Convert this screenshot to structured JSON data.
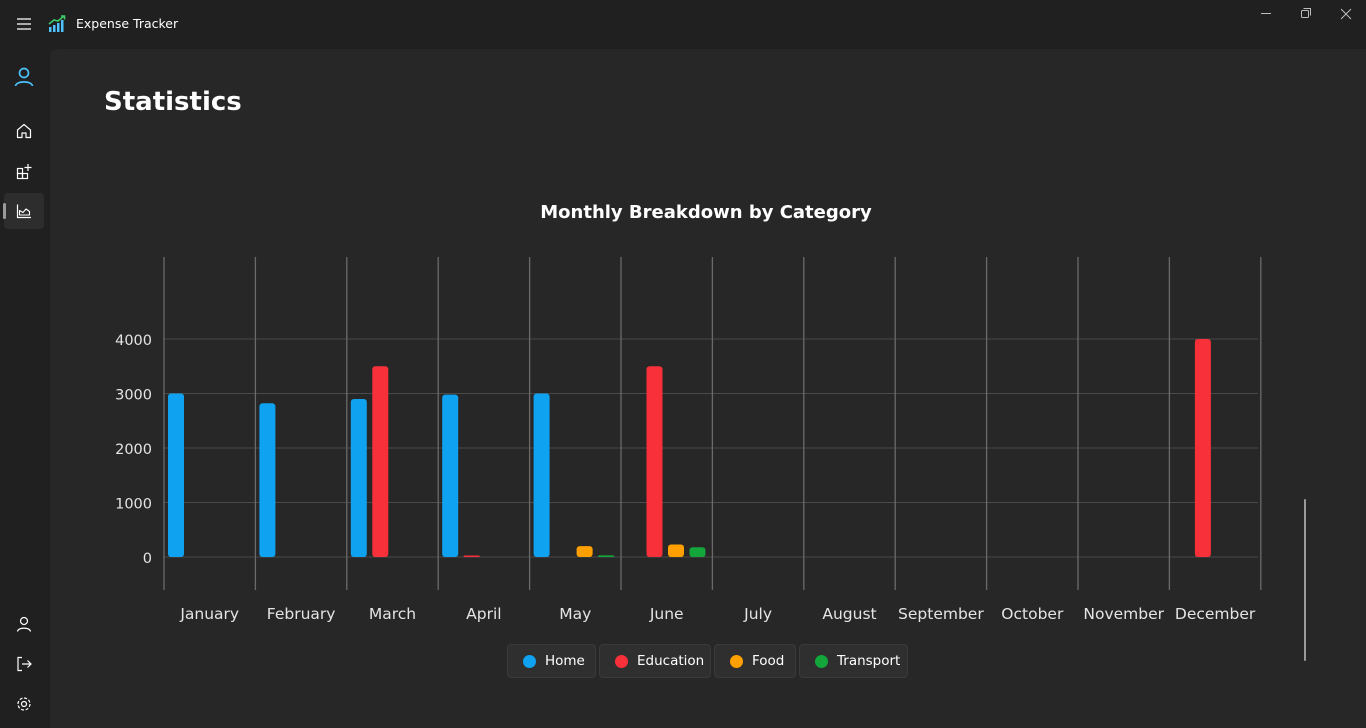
{
  "app": {
    "title": "Expense Tracker"
  },
  "page": {
    "title": "Statistics"
  },
  "nav": {
    "items": [
      {
        "icon": "person-icon",
        "name": "account"
      },
      {
        "icon": "home-icon",
        "name": "home"
      },
      {
        "icon": "apps-add-icon",
        "name": "manage"
      },
      {
        "icon": "area-chart-icon",
        "name": "statistics",
        "selected": true
      },
      {
        "icon": "person-icon",
        "name": "profile"
      },
      {
        "icon": "sign-out-icon",
        "name": "logout"
      },
      {
        "icon": "gear-icon",
        "name": "settings"
      }
    ]
  },
  "colors": {
    "accent": "#4cc2ff",
    "home": "#0ea2f0",
    "education": "#f83039",
    "food": "#ffa000",
    "transport": "#13a63b"
  },
  "chart_data": {
    "type": "bar",
    "title": "Monthly Breakdown by Category",
    "categories": [
      "January",
      "February",
      "March",
      "April",
      "May",
      "June",
      "July",
      "August",
      "September",
      "October",
      "November",
      "December"
    ],
    "yticks": [
      0,
      1000,
      2000,
      3000,
      4000
    ],
    "ylim": [
      -500,
      4500
    ],
    "grid": true,
    "legend_position": "bottom",
    "series": [
      {
        "name": "Home",
        "color": "#0ea2f0",
        "values": [
          3000,
          2820,
          2900,
          2980,
          3000,
          0,
          0,
          0,
          0,
          0,
          0,
          0
        ]
      },
      {
        "name": "Education",
        "color": "#f83039",
        "values": [
          0,
          0,
          3500,
          10,
          0,
          3500,
          0,
          0,
          0,
          0,
          0,
          4000
        ]
      },
      {
        "name": "Food",
        "color": "#ffa000",
        "values": [
          0,
          0,
          0,
          0,
          200,
          230,
          0,
          0,
          0,
          0,
          0,
          0
        ]
      },
      {
        "name": "Transport",
        "color": "#13a63b",
        "values": [
          0,
          0,
          0,
          0,
          30,
          180,
          0,
          0,
          0,
          0,
          0,
          0
        ]
      }
    ]
  }
}
